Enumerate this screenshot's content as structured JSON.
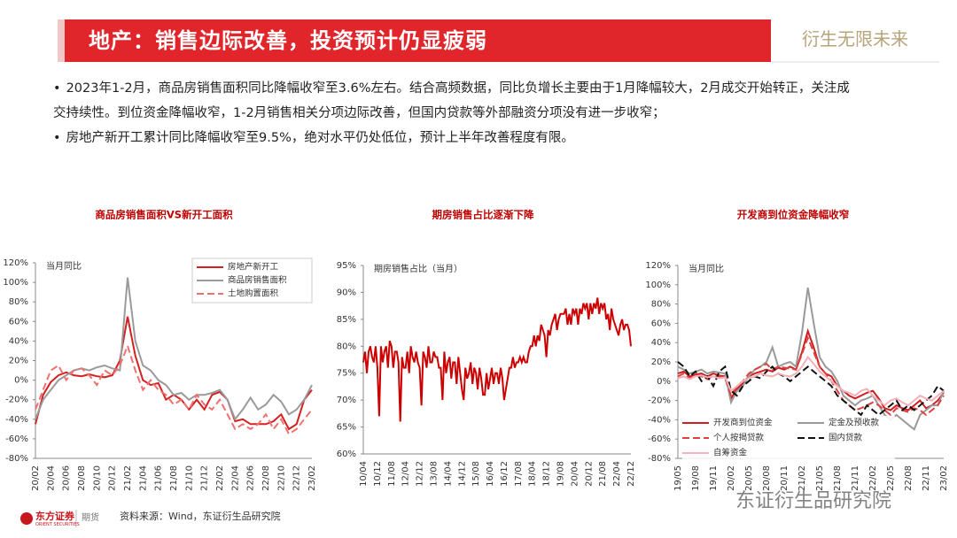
{
  "header": {
    "title": "地产：销售边际改善，投资预计仍显疲弱",
    "slogan": "衍生无限未来"
  },
  "bullets": [
    "2023年1-2月，商品房销售面积同比降幅收窄至3.6%左右。结合高频数据，同比负增长主要由于1月降幅较大，2月成交开始转正，关注成交持续性。到位资金降幅收窄，1-2月销售相关分项边际改善，但国内贷款等外部融资分项没有进一步收窄；",
    "房地产新开工累计同比降幅收窄至9.5%，绝对水平仍处低位，预计上半年改善程度有限。"
  ],
  "footer": {
    "logo": "东方证券",
    "logo_en": "ORIENT SECURITIES",
    "division": "期货",
    "source": "资料来源：Wind，东证衍生品研究院",
    "watermark": "东证衍生品研究院"
  },
  "chart_data": [
    {
      "type": "line",
      "title": "商品房销售面积VS新开工面积",
      "ylabel": "当月同比",
      "legend": "upper right",
      "categories": [
        "20/02",
        null,
        "20/04",
        null,
        "20/06",
        null,
        "20/08",
        null,
        "20/10",
        null,
        "20/12",
        null,
        "21/02",
        null,
        "21/04",
        null,
        "21/06",
        null,
        "21/08",
        null,
        "21/10",
        null,
        "21/12",
        null,
        "22/02",
        null,
        "22/04",
        null,
        "22/06",
        null,
        "22/08",
        null,
        "22/10",
        null,
        "22/12",
        null,
        "23/02"
      ],
      "series": [
        {
          "name": "房地产新开工",
          "color": "#d42020",
          "dash": false,
          "values": [
            -45,
            -15,
            -2,
            5,
            8,
            5,
            4,
            6,
            4,
            3,
            5,
            20,
            65,
            25,
            0,
            -5,
            -3,
            -20,
            -15,
            -20,
            -30,
            -20,
            -30,
            -15,
            -12,
            -20,
            -42,
            -40,
            -45,
            -45,
            -45,
            -42,
            -35,
            -50,
            -45,
            -20,
            -10
          ]
        },
        {
          "name": "商品房销售面积",
          "color": "#9a9a9a",
          "dash": false,
          "values": [
            -40,
            -20,
            -10,
            0,
            5,
            10,
            12,
            10,
            13,
            15,
            12,
            10,
            105,
            40,
            15,
            10,
            0,
            -5,
            -15,
            -13,
            -20,
            -15,
            -15,
            -13,
            -10,
            -20,
            -40,
            -30,
            -18,
            -30,
            -25,
            -15,
            -22,
            -35,
            -30,
            -20,
            -5
          ]
        },
        {
          "name": "土地购置面积",
          "color": "#f07070",
          "dash": true,
          "values": [
            -30,
            -10,
            10,
            15,
            0,
            10,
            12,
            5,
            -5,
            10,
            5,
            15,
            35,
            10,
            -10,
            0,
            -10,
            -15,
            -25,
            -20,
            -30,
            -15,
            -25,
            -30,
            -20,
            -35,
            -50,
            -45,
            -50,
            -45,
            -35,
            -50,
            -40,
            -55,
            -50,
            -40,
            -30
          ]
        }
      ],
      "ylim": [
        -80,
        120
      ],
      "yticks": [
        {
          "value": -80,
          "label": "-80%"
        },
        {
          "value": -60,
          "label": "-60%"
        },
        {
          "value": -40,
          "label": "-40%"
        },
        {
          "value": -20,
          "label": "-20%"
        },
        {
          "value": 0,
          "label": "0%"
        },
        {
          "value": 20,
          "label": "20%"
        },
        {
          "value": 40,
          "label": "40%"
        },
        {
          "value": 60,
          "label": "60%"
        },
        {
          "value": 80,
          "label": "80%"
        },
        {
          "value": 100,
          "label": "100%"
        },
        {
          "value": 120,
          "label": "120%"
        }
      ]
    },
    {
      "type": "line",
      "title": "期房销售占比逐渐下降",
      "ylabel": "期房销售占比（当月）",
      "legend": "none",
      "categories": [
        "10/04",
        null,
        null,
        null,
        null,
        null,
        null,
        null,
        "10/12",
        null,
        null,
        null,
        null,
        null,
        null,
        null,
        "11/08",
        null,
        null,
        null,
        null,
        null,
        null,
        null,
        "12/04",
        null,
        null,
        null,
        null,
        null,
        null,
        null,
        "12/12",
        null,
        null,
        null,
        null,
        null,
        null,
        null,
        "13/08",
        null,
        null,
        null,
        null,
        null,
        null,
        null,
        "14/04",
        null,
        null,
        null,
        null,
        null,
        null,
        null,
        "14/12",
        null,
        null,
        null,
        null,
        null,
        null,
        null,
        "15/08",
        null,
        null,
        null,
        null,
        null,
        null,
        null,
        "16/04",
        null,
        null,
        null,
        null,
        null,
        null,
        null,
        "16/12",
        null,
        null,
        null,
        null,
        null,
        null,
        null,
        "17/08",
        null,
        null,
        null,
        null,
        null,
        null,
        null,
        "18/04",
        null,
        null,
        null,
        null,
        null,
        null,
        null,
        "18/12",
        null,
        null,
        null,
        null,
        null,
        null,
        null,
        "19/08",
        null,
        null,
        null,
        null,
        null,
        null,
        null,
        "20/04",
        null,
        null,
        null,
        null,
        null,
        null,
        null,
        "20/12",
        null,
        null,
        null,
        null,
        null,
        null,
        null,
        "21/08",
        null,
        null,
        null,
        null,
        null,
        null,
        null,
        "22/04",
        null,
        null,
        null,
        null,
        null,
        null,
        null,
        "22/12"
      ],
      "series": [
        {
          "name": "期房销售占比",
          "color": "#cc0000",
          "dash": false,
          "values": [
            77,
            79,
            75,
            79,
            80,
            78,
            77,
            80,
            76,
            67,
            80,
            77,
            79,
            80,
            76,
            81,
            80,
            76,
            79,
            79,
            77,
            66,
            78,
            76,
            76,
            79,
            75,
            80,
            78,
            77,
            79,
            77,
            76,
            69,
            79,
            78,
            76,
            80,
            77,
            77,
            79,
            78,
            78,
            76,
            76,
            70,
            79,
            75,
            77,
            78,
            74,
            77,
            77,
            73,
            78,
            75,
            72,
            70,
            76,
            74,
            75,
            77,
            73,
            76,
            75,
            72,
            76,
            74,
            71,
            71,
            75,
            72,
            74,
            76,
            73,
            75,
            75,
            73,
            76,
            74,
            70,
            72,
            74,
            76,
            76,
            78,
            76,
            77,
            77,
            78,
            77,
            78,
            77,
            77,
            79,
            80,
            80,
            82,
            80,
            82,
            81,
            84,
            83,
            82,
            78,
            83,
            82,
            84,
            85,
            86,
            83,
            85,
            86,
            86,
            86,
            87,
            84,
            86,
            84,
            87,
            86,
            87,
            84,
            87,
            86,
            88,
            87,
            88,
            85,
            88,
            86,
            88,
            87,
            89,
            86,
            88,
            87,
            88,
            85,
            86,
            83,
            87,
            85,
            84,
            83,
            82,
            84,
            85,
            83,
            84,
            84,
            83,
            80
          ]
        }
      ],
      "ylim": [
        60,
        95
      ],
      "yticks": [
        {
          "value": 60,
          "label": "60%"
        },
        {
          "value": 65,
          "label": "65%"
        },
        {
          "value": 70,
          "label": "70%"
        },
        {
          "value": 75,
          "label": "75%"
        },
        {
          "value": 80,
          "label": "80%"
        },
        {
          "value": 85,
          "label": "85%"
        },
        {
          "value": 90,
          "label": "90%"
        },
        {
          "value": 95,
          "label": "95%"
        }
      ]
    },
    {
      "type": "line",
      "title": "开发商到位资金降幅收窄",
      "ylabel": "当月同比",
      "legend": "lower left",
      "categories": [
        "19/05",
        null,
        null,
        "19/08",
        null,
        null,
        "19/11",
        null,
        null,
        "20/02",
        null,
        null,
        "20/05",
        null,
        null,
        "20/08",
        null,
        null,
        "20/11",
        null,
        null,
        "21/02",
        null,
        null,
        "21/05",
        null,
        null,
        "21/08",
        null,
        null,
        "21/11",
        null,
        null,
        "22/02",
        null,
        null,
        "22/05",
        null,
        null,
        "22/08",
        null,
        null,
        "22/11",
        null,
        null,
        "23/02"
      ],
      "series": [
        {
          "name": "开发商到位资金",
          "color": "#cc1f1f",
          "dash": false,
          "values": [
            8,
            10,
            5,
            7,
            8,
            5,
            8,
            6,
            5,
            -18,
            -8,
            -2,
            5,
            8,
            10,
            12,
            10,
            14,
            12,
            15,
            12,
            30,
            52,
            35,
            15,
            8,
            5,
            -5,
            -10,
            -15,
            -18,
            -15,
            -12,
            -10,
            -18,
            -28,
            -30,
            -25,
            -28,
            -30,
            -25,
            -20,
            -28,
            -25,
            -20,
            -12
          ]
        },
        {
          "name": "定金及预收款",
          "color": "#999999",
          "dash": false,
          "values": [
            15,
            12,
            8,
            10,
            12,
            8,
            10,
            9,
            8,
            -22,
            -10,
            -5,
            5,
            12,
            15,
            20,
            35,
            15,
            18,
            20,
            15,
            50,
            97,
            60,
            25,
            15,
            10,
            0,
            -15,
            -20,
            -25,
            -20,
            -18,
            -15,
            -25,
            -35,
            -40,
            -35,
            -40,
            -45,
            -50,
            -35,
            -30,
            -25,
            -25,
            -10
          ]
        },
        {
          "name": "个人按揭贷款",
          "color": "#e04040",
          "dash": true,
          "values": [
            5,
            8,
            3,
            6,
            5,
            2,
            6,
            5,
            3,
            -15,
            -5,
            0,
            8,
            12,
            15,
            18,
            12,
            15,
            14,
            13,
            12,
            28,
            45,
            30,
            15,
            8,
            0,
            -10,
            -20,
            -25,
            -30,
            -28,
            -25,
            -22,
            -25,
            -30,
            -35,
            -28,
            -30,
            -32,
            -28,
            -30,
            -35,
            -30,
            -25,
            -15
          ]
        },
        {
          "name": "国内贷款",
          "color": "#111111",
          "dash": true,
          "values": [
            20,
            15,
            5,
            10,
            0,
            5,
            -5,
            10,
            15,
            -10,
            -15,
            -5,
            0,
            5,
            3,
            10,
            15,
            8,
            5,
            0,
            5,
            10,
            15,
            10,
            5,
            0,
            -5,
            -15,
            -20,
            -25,
            -30,
            -35,
            -25,
            -30,
            -35,
            -30,
            -25,
            -20,
            -30,
            -25,
            -30,
            -25,
            -20,
            -15,
            -5,
            -10
          ]
        },
        {
          "name": "自筹资金",
          "color": "#f4b0b8",
          "dash": false,
          "values": [
            3,
            5,
            2,
            5,
            6,
            4,
            5,
            3,
            4,
            -10,
            -5,
            0,
            3,
            5,
            8,
            6,
            5,
            8,
            6,
            5,
            8,
            15,
            25,
            18,
            10,
            5,
            0,
            -5,
            -10,
            -12,
            -15,
            -10,
            -8,
            -15,
            -20,
            -25,
            -20,
            -18,
            -22,
            -25,
            -20,
            -15,
            -18,
            -20,
            -15,
            -10
          ]
        }
      ],
      "ylim": [
        -80,
        120
      ],
      "yticks": [
        {
          "value": -80,
          "label": "-80%"
        },
        {
          "value": -60,
          "label": "-60%"
        },
        {
          "value": -40,
          "label": "-40%"
        },
        {
          "value": -20,
          "label": "-20%"
        },
        {
          "value": 0,
          "label": "0%"
        },
        {
          "value": 20,
          "label": "20%"
        },
        {
          "value": 40,
          "label": "40%"
        },
        {
          "value": 60,
          "label": "60%"
        },
        {
          "value": 80,
          "label": "80%"
        },
        {
          "value": 100,
          "label": "100%"
        },
        {
          "value": 120,
          "label": "120%"
        }
      ]
    }
  ]
}
